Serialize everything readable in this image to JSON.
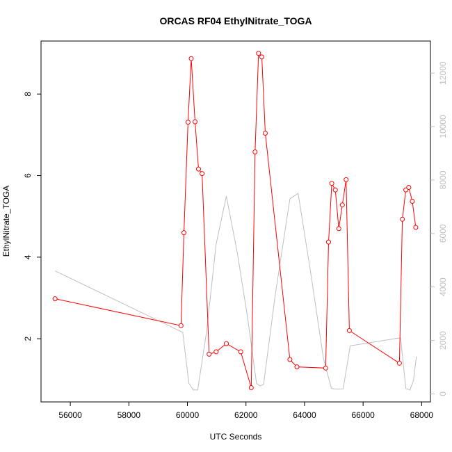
{
  "chart_data": {
    "type": "line",
    "title": "ORCAS RF04 EthylNitrate_TOGA",
    "xlabel": "UTC Seconds",
    "ylabel": "EthylNitrate_TOGA",
    "xlim": [
      55000,
      68300
    ],
    "ylim": [
      0.45,
      9.3
    ],
    "y2lim": [
      -300,
      13200
    ],
    "x_ticks": [
      56000,
      58000,
      60000,
      62000,
      64000,
      66000,
      68000
    ],
    "y_ticks": [
      2,
      4,
      6,
      8
    ],
    "y2_ticks": [
      0,
      2000,
      4000,
      6000,
      8000,
      10000,
      12000
    ],
    "grid": false,
    "colors": {
      "primary": "#ff0000",
      "secondary": "#bebebe"
    },
    "series": [
      {
        "axis": "left",
        "style": "line+points",
        "x": [
          55480,
          59780,
          59880,
          60020,
          60130,
          60260,
          60380,
          60500,
          60740,
          60980,
          61330,
          61820,
          62180,
          62310,
          62430,
          62540,
          62660,
          63500,
          63740,
          64720,
          64820,
          64930,
          65050,
          65170,
          65290,
          65420,
          65530,
          67240,
          67340,
          67460,
          67560,
          67680,
          67800
        ],
        "y": [
          2.98,
          2.32,
          4.6,
          7.31,
          8.87,
          7.32,
          6.16,
          6.05,
          1.62,
          1.68,
          1.88,
          1.68,
          0.8,
          6.58,
          9.0,
          8.91,
          7.04,
          1.49,
          1.31,
          1.28,
          4.37,
          5.81,
          5.65,
          4.7,
          5.28,
          5.9,
          2.2,
          1.4,
          4.93,
          5.65,
          5.71,
          5.37,
          4.73
        ]
      },
      {
        "axis": "right",
        "style": "line",
        "x": [
          55480,
          59840,
          60050,
          60200,
          60350,
          60650,
          60980,
          61330,
          61700,
          62050,
          62360,
          62480,
          62600,
          63000,
          63500,
          63780,
          64200,
          64650,
          64920,
          65120,
          65320,
          65560,
          67280,
          67460,
          67600,
          67720,
          67820
        ],
        "y": [
          4600,
          2300,
          400,
          150,
          150,
          2300,
          5600,
          7400,
          5300,
          2900,
          400,
          300,
          350,
          3700,
          7300,
          7500,
          4600,
          1300,
          200,
          180,
          190,
          1800,
          2100,
          200,
          150,
          500,
          1400
        ]
      }
    ]
  }
}
